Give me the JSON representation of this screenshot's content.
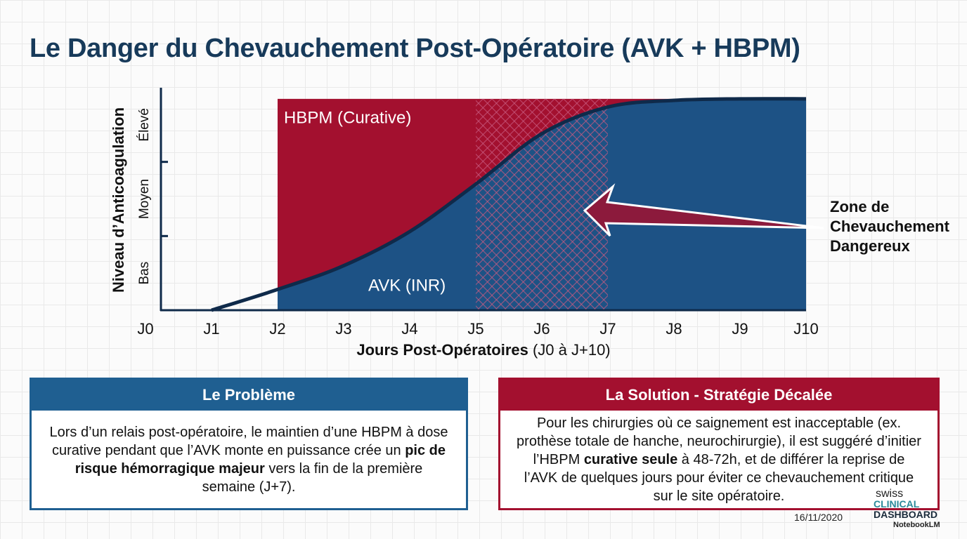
{
  "title": "Le Danger du Chevauchement Post-Opératoire (AVK + HBPM)",
  "chart_data": {
    "type": "area",
    "categories": [
      "J0",
      "J1",
      "J2",
      "J3",
      "J4",
      "J5",
      "J6",
      "J7",
      "J8",
      "J9",
      "J10"
    ],
    "series": [
      {
        "name": "HBPM (Curative)",
        "color": "#a3102f",
        "values": [
          null,
          null,
          2.85,
          2.85,
          2.85,
          2.85,
          2.85,
          2.85,
          2.85,
          2.85,
          2.85
        ]
      },
      {
        "name": "AVK (INR)",
        "color": "#1d5285",
        "values": [
          null,
          0,
          0.28,
          0.6,
          1.06,
          1.7,
          2.38,
          2.74,
          2.83,
          2.85,
          2.85
        ]
      }
    ],
    "curve_color": "#0f2a4a",
    "ylim": [
      0,
      3
    ],
    "yticks": [
      {
        "value": 0.5,
        "label": "Bas"
      },
      {
        "value": 1.5,
        "label": "Moyen"
      },
      {
        "value": 2.5,
        "label": "Élevé"
      }
    ],
    "y_label": "Niveau d’Anticoagulation",
    "x_label": "Jours Post-Opératoires",
    "x_label_suffix": " (J0 à J+10)",
    "overlap_from": "J5",
    "overlap_to": "J7",
    "annotation_lines": [
      "Zone de",
      "Chevauchement",
      "Dangereux"
    ]
  },
  "panels": [
    {
      "title": "Le Problème",
      "runs": [
        {
          "text": "Lors d’un relais post-opératoire, le maintien d’une HBPM à dose curative pendant que l’AVK monte en puissance crée un ",
          "bold": false
        },
        {
          "text": "pic de risque hémorragique majeur",
          "bold": true
        },
        {
          "text": " vers la fin de la première semaine (J+7).",
          "bold": false
        }
      ]
    },
    {
      "title": "La Solution - Stratégie Décalée",
      "runs": [
        {
          "text": "Pour les chirurgies où ce saignement est inacceptable (ex. prothèse totale de hanche, neurochirurgie), il est suggéré d’initier l’HBPM ",
          "bold": false
        },
        {
          "text": "curative seule",
          "bold": true
        },
        {
          "text": " à 48-72h, et de différer la reprise de l’AVK de quelques jours pour éviter ce chevauchement critique sur le site opératoire.",
          "bold": false
        }
      ]
    }
  ],
  "footer": {
    "date": "16/11/2020",
    "logo_top": "swiss",
    "logo_mid": "CLINICAL",
    "logo_bottom": "DASHBOARD",
    "credit": "NotebookLM"
  }
}
